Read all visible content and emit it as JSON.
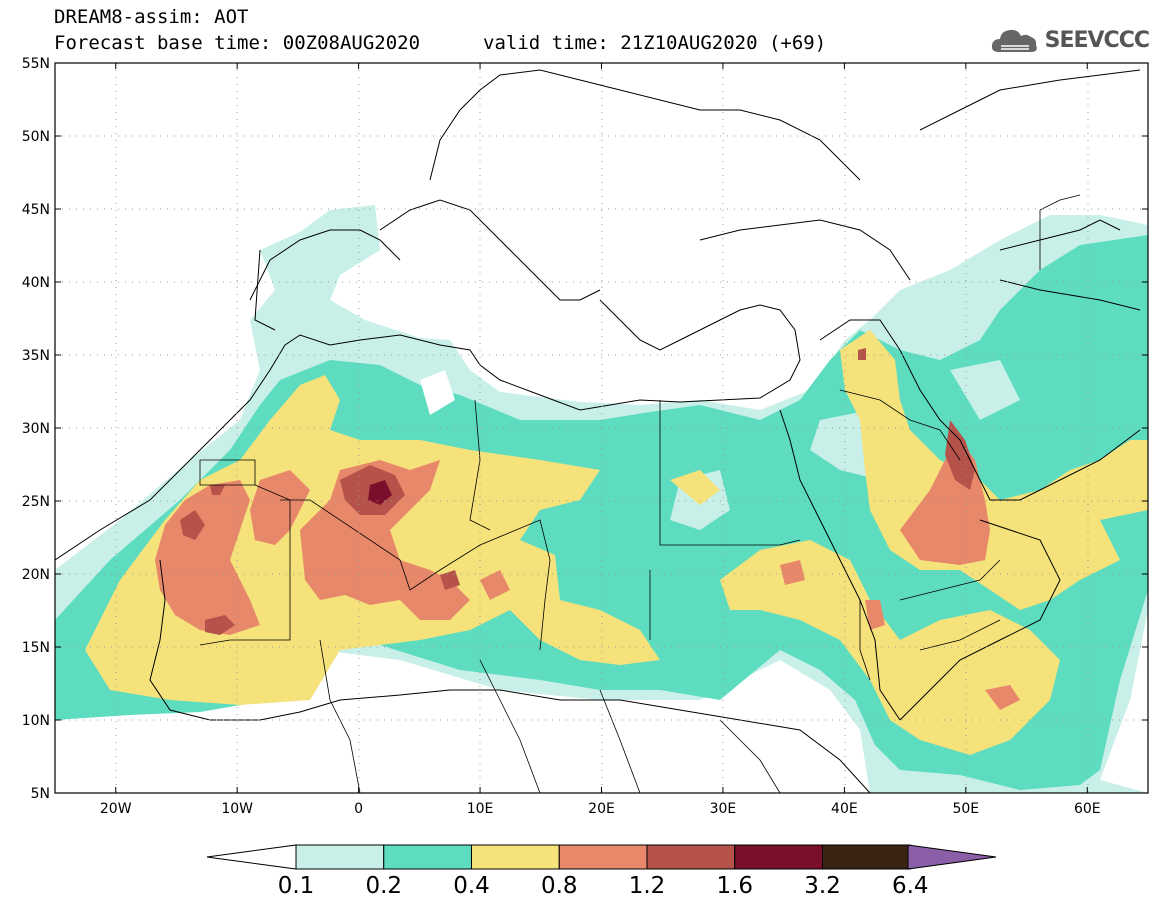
{
  "header": {
    "title": "DREAM8-assim: AOT",
    "base_time": "Forecast base time: 00Z08AUG2020",
    "valid_time": "valid time: 21Z10AUG2020 (+69)",
    "logo_text": "SEEVCCC"
  },
  "map": {
    "lon_range": [
      -25,
      65
    ],
    "lat_range": [
      5,
      55
    ],
    "lat_ticks": [
      "5N",
      "10N",
      "15N",
      "20N",
      "25N",
      "30N",
      "35N",
      "40N",
      "45N",
      "50N",
      "55N"
    ],
    "lon_ticks": [
      "20W",
      "10W",
      "0",
      "10E",
      "20E",
      "30E",
      "40E",
      "50E",
      "60E"
    ]
  },
  "colorbar": {
    "labels": [
      "0.1",
      "0.2",
      "0.4",
      "0.8",
      "1.2",
      "1.6",
      "3.2",
      "6.4"
    ],
    "colors": [
      "#c8f0e8",
      "#5ddcc0",
      "#f5e27a",
      "#e8886a",
      "#b5524a",
      "#7a0f2c",
      "#3a2413",
      "#8a5fa8"
    ]
  }
}
